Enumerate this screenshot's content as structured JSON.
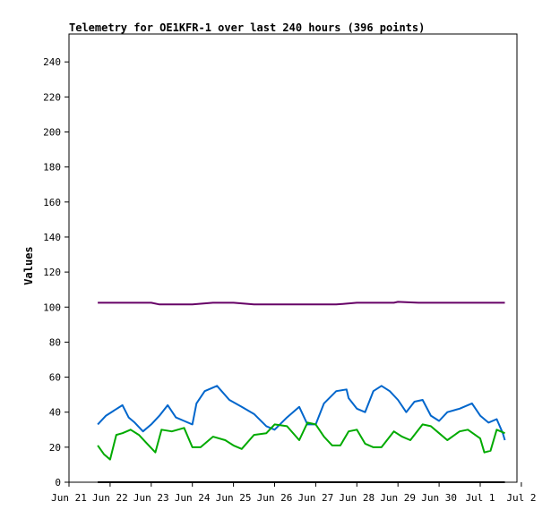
{
  "chart_data": {
    "type": "line",
    "title": "Telemetry for OE1KFR-1 over last 240 hours (396 points)",
    "xlabel": "",
    "ylabel": "Values",
    "ylim": [
      0,
      250
    ],
    "y_ticks": [
      0,
      20,
      40,
      60,
      80,
      100,
      120,
      140,
      160,
      180,
      200,
      220,
      240
    ],
    "x_tick_labels": [
      "Jun 21",
      "Jun 22",
      "Jun 23",
      "Jun 24",
      "Jun 25",
      "Jun 26",
      "Jun 27",
      "Jun 28",
      "Jun 29",
      "Jun 30",
      "Jul 1",
      "Jul 2"
    ],
    "grid": false,
    "colors": {
      "frame": "#000000",
      "series_purple": "#660066",
      "series_blue": "#0066cc",
      "series_green": "#00aa00",
      "series_black": "#000000"
    },
    "series": [
      {
        "color": "#660066",
        "x": [
          0.7,
          1.0,
          1.5,
          2.0,
          2.2,
          3.0,
          3.5,
          4.0,
          4.5,
          5.0,
          6.0,
          6.5,
          7.0,
          7.5,
          7.9,
          8.0,
          8.5,
          9.0,
          10.0,
          10.6
        ],
        "y": [
          102.5,
          102.5,
          102.5,
          102.5,
          101.5,
          101.5,
          102.5,
          102.5,
          101.5,
          101.5,
          101.5,
          101.5,
          102.5,
          102.5,
          102.5,
          103,
          102.5,
          102.5,
          102.5,
          102.5
        ]
      },
      {
        "color": "#0066cc",
        "x": [
          0.7,
          0.9,
          1.1,
          1.3,
          1.45,
          1.6,
          1.8,
          2.0,
          2.2,
          2.4,
          2.6,
          2.8,
          3.0,
          3.1,
          3.3,
          3.6,
          3.9,
          4.2,
          4.5,
          4.8,
          5.0,
          5.3,
          5.6,
          5.8,
          6.0,
          6.2,
          6.5,
          6.75,
          6.8,
          7.0,
          7.2,
          7.4,
          7.6,
          7.8,
          8.0,
          8.2,
          8.4,
          8.6,
          8.8,
          9.0,
          9.2,
          9.5,
          9.8,
          10.0,
          10.2,
          10.4,
          10.55,
          10.6
        ],
        "y": [
          33,
          38,
          41,
          44,
          37,
          34,
          29,
          33,
          38,
          44,
          37,
          35,
          33,
          45,
          52,
          55,
          47,
          43,
          39,
          32,
          30,
          37,
          43,
          33,
          33,
          45,
          52,
          53,
          48,
          42,
          40,
          52,
          55,
          52,
          47,
          40,
          46,
          47,
          38,
          35,
          40,
          42,
          45,
          38,
          34,
          36,
          28,
          24
        ]
      },
      {
        "color": "#00aa00",
        "x": [
          0.7,
          0.85,
          1.0,
          1.15,
          1.3,
          1.5,
          1.7,
          1.9,
          2.1,
          2.25,
          2.5,
          2.8,
          3.0,
          3.2,
          3.5,
          3.8,
          4.0,
          4.2,
          4.5,
          4.8,
          5.0,
          5.3,
          5.6,
          5.8,
          6.0,
          6.2,
          6.4,
          6.6,
          6.8,
          7.0,
          7.2,
          7.4,
          7.6,
          7.9,
          8.1,
          8.3,
          8.6,
          8.8,
          9.0,
          9.2,
          9.5,
          9.7,
          10.0,
          10.1,
          10.25,
          10.4,
          10.6
        ],
        "y": [
          21,
          16,
          13,
          27,
          28,
          30,
          27,
          22,
          17,
          30,
          29,
          31,
          20,
          20,
          26,
          24,
          21,
          19,
          27,
          28,
          33,
          32,
          24,
          34,
          33,
          26,
          21,
          21,
          29,
          30,
          22,
          20,
          20,
          29,
          26,
          24,
          33,
          32,
          28,
          24,
          29,
          30,
          25,
          17,
          18,
          30,
          28
        ]
      },
      {
        "color": "#000000",
        "x": [
          0.7,
          10.6
        ],
        "y": [
          0,
          0
        ]
      }
    ]
  }
}
